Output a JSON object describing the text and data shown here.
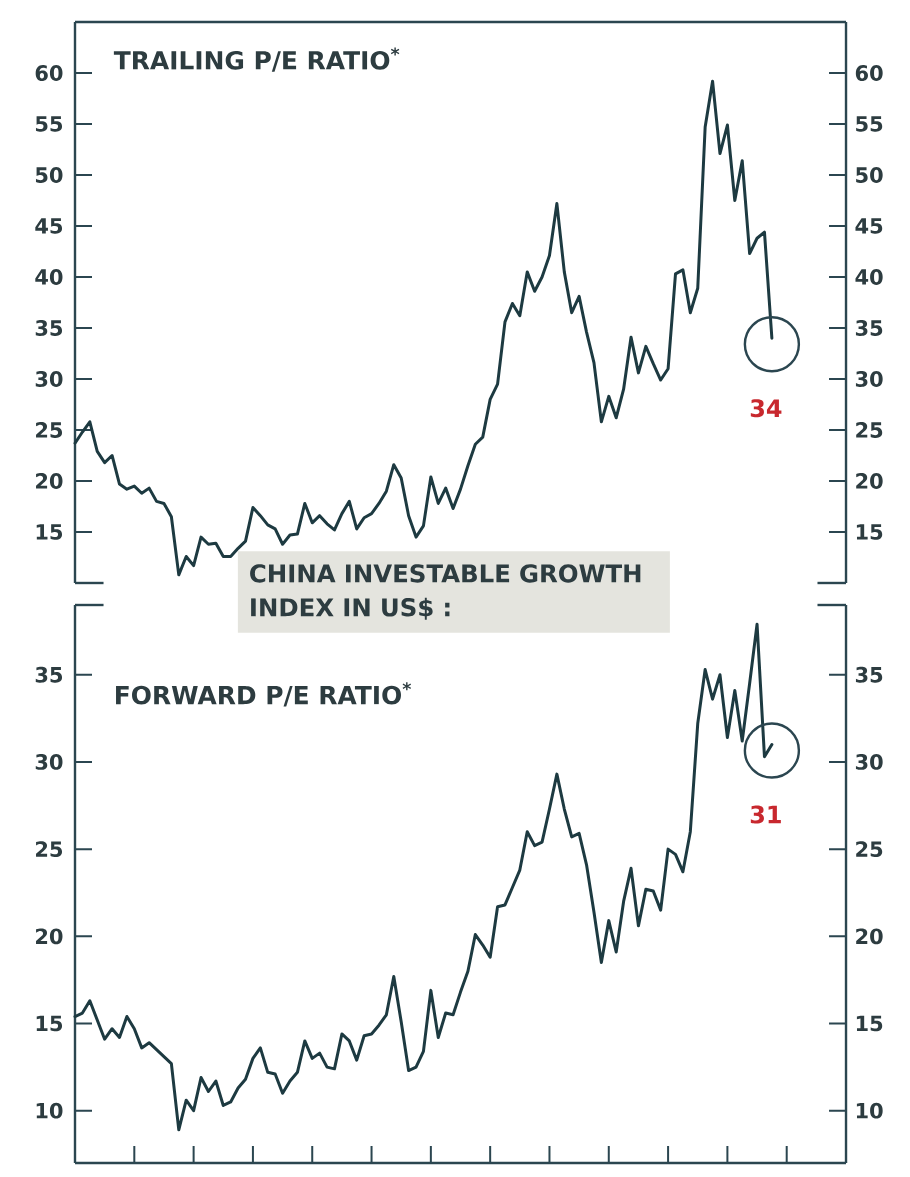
{
  "chart_data": [
    {
      "type": "line",
      "title": "TRAILING P/E RATIO$^{*}$",
      "categories": [
        null,
        null,
        null,
        null,
        null,
        null,
        null,
        null,
        null,
        null,
        null,
        null,
        null,
        null,
        null,
        null,
        null,
        null,
        null,
        null,
        null,
        null,
        null,
        null,
        null,
        null,
        null,
        null,
        null,
        null,
        null,
        null,
        null,
        null,
        null,
        null,
        null,
        null,
        null,
        null,
        null,
        null,
        null,
        null,
        null,
        null,
        null,
        null,
        null,
        null,
        null,
        null,
        null,
        null,
        null,
        null,
        null,
        null,
        null,
        null,
        null,
        null,
        null,
        null,
        null,
        null,
        null,
        null,
        null,
        null,
        null,
        null,
        null,
        null,
        null,
        null,
        null,
        null,
        null,
        null,
        null,
        null,
        null,
        null,
        null,
        null,
        null,
        null,
        null,
        null,
        null,
        null,
        null,
        null,
        null,
        null,
        null,
        null,
        null,
        null,
        null,
        null,
        null,
        null,
        null
      ],
      "series": [
        {
          "color": "#1d3a41",
          "values": [
            23.7,
            24.8,
            25.8,
            22.9,
            21.8,
            22.5,
            19.7,
            19.2,
            19.5,
            18.8,
            19.3,
            18.0,
            17.8,
            16.5,
            10.8,
            12.6,
            11.7,
            14.5,
            13.8,
            13.9,
            12.6,
            12.6,
            13.4,
            14.1,
            17.4,
            16.6,
            15.7,
            15.3,
            13.8,
            14.7,
            14.8,
            17.8,
            15.9,
            16.6,
            15.8,
            15.2,
            16.8,
            18.0,
            15.3,
            16.4,
            16.8,
            17.8,
            19.0,
            21.6,
            20.3,
            16.6,
            14.5,
            15.6,
            20.4,
            17.8,
            19.3,
            17.3,
            19.2,
            21.5,
            23.6,
            24.3,
            28.0,
            29.5,
            35.6,
            37.4,
            36.2,
            40.5,
            38.6,
            40.0,
            42.1,
            47.2,
            40.5,
            36.5,
            38.1,
            34.6,
            31.6,
            25.8,
            28.3,
            26.2,
            29.0,
            34.1,
            30.6,
            33.2,
            31.5,
            29.9,
            31.0,
            40.3,
            40.7,
            36.5,
            38.9,
            54.7,
            59.2,
            52.1,
            54.9,
            47.5,
            51.4,
            42.3,
            43.8,
            44.4,
            34,
            null,
            null,
            null,
            null,
            null,
            null,
            null,
            null,
            null,
            null
          ]
        }
      ],
      "ylim": [
        10,
        65
      ],
      "yticks": [
        15,
        20,
        25,
        30,
        35,
        40,
        45,
        50,
        55,
        60
      ],
      "y2lim": [
        10,
        65
      ],
      "y2ticks": [
        15,
        20,
        25,
        30,
        35,
        40,
        45,
        50,
        55,
        60
      ],
      "tick_labels": "y",
      "annotations": [
        "CHINA INVESTABLE GROWTH INDEX IN US$ :",
        {
          "text": "34",
          "y": 34
        }
      ]
    },
    {
      "type": "line",
      "title": "FORWARD P/E RATIO$^{*}$",
      "categories": [
        null,
        null,
        null,
        null,
        null,
        null,
        null,
        null,
        null,
        null,
        null,
        null,
        null,
        null,
        null,
        null,
        null,
        null,
        null,
        null,
        null,
        null,
        null,
        null,
        null,
        null,
        null,
        null,
        null,
        null,
        null,
        null,
        null,
        null,
        null,
        null,
        null,
        null,
        null,
        null,
        null,
        null,
        null,
        null,
        null,
        null,
        null,
        null,
        null,
        null,
        null,
        null,
        null,
        null,
        null,
        null,
        null,
        null,
        null,
        null,
        null,
        null,
        null,
        null,
        null,
        null,
        null,
        null,
        null,
        null,
        null,
        null,
        null,
        null,
        null,
        null,
        null,
        null,
        null,
        null,
        null,
        null,
        null,
        null,
        null,
        null,
        null,
        null,
        null,
        null,
        null,
        null,
        null,
        null,
        null,
        null,
        null,
        null,
        null,
        null,
        null,
        null,
        null,
        null,
        null
      ],
      "series": [
        {
          "color": "#1d3a41",
          "values": [
            15.4,
            15.6,
            16.3,
            15.2,
            14.1,
            14.7,
            14.2,
            15.4,
            14.7,
            13.6,
            13.9,
            13.5,
            13.1,
            12.7,
            8.9,
            10.6,
            10.0,
            11.9,
            11.1,
            11.7,
            10.3,
            10.5,
            11.3,
            11.8,
            13.0,
            13.6,
            12.2,
            12.1,
            11.0,
            11.7,
            12.2,
            14.0,
            13.0,
            13.3,
            12.5,
            12.4,
            14.4,
            14.0,
            12.9,
            14.3,
            14.4,
            14.9,
            15.5,
            17.7,
            15.1,
            12.3,
            12.5,
            13.4,
            16.9,
            14.2,
            15.6,
            15.5,
            16.8,
            18.0,
            20.1,
            19.5,
            18.8,
            21.7,
            21.8,
            22.8,
            23.8,
            26.0,
            25.2,
            25.4,
            27.3,
            29.3,
            27.3,
            25.7,
            25.9,
            24.1,
            21.4,
            18.5,
            20.9,
            19.1,
            22.0,
            23.9,
            20.6,
            22.7,
            22.6,
            21.5,
            25.0,
            24.7,
            23.7,
            26.0,
            32.2,
            35.3,
            33.6,
            35.0,
            31.4,
            34.1,
            31.2,
            34.5,
            37.9,
            30.3,
            31,
            null,
            null,
            null,
            null,
            null,
            null,
            null,
            null,
            null,
            null
          ]
        }
      ],
      "ylim": [
        7,
        39
      ],
      "yticks": [
        10,
        15,
        20,
        25,
        30,
        35
      ],
      "y2lim": [
        7,
        39
      ],
      "y2ticks": [
        10,
        15,
        20,
        25,
        30,
        35
      ],
      "annotations": [
        {
          "text": "31",
          "y": 31
        }
      ]
    }
  ]
}
